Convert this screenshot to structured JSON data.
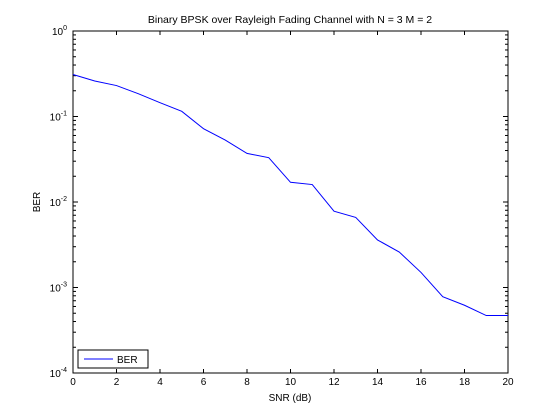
{
  "chart_data": {
    "type": "line",
    "title": "Binary BPSK over Rayleigh Fading Channel with N = 3 M = 2",
    "xlabel": "SNR (dB)",
    "ylabel": "BER",
    "xlim": [
      0,
      20
    ],
    "ylim": [
      0.0001,
      1
    ],
    "yscale": "log",
    "grid": false,
    "legend_position": "bottom-left",
    "x_ticks": [
      0,
      2,
      4,
      6,
      8,
      10,
      12,
      14,
      16,
      18,
      20
    ],
    "x_tick_labels": [
      "0",
      "2",
      "4",
      "6",
      "8",
      "10",
      "12",
      "14",
      "16",
      "18",
      "20"
    ],
    "y_ticks": [
      {
        "value": 0.0001,
        "base": "10",
        "exp": "-4"
      },
      {
        "value": 0.001,
        "base": "10",
        "exp": "-3"
      },
      {
        "value": 0.01,
        "base": "10",
        "exp": "-2"
      },
      {
        "value": 0.1,
        "base": "10",
        "exp": "-1"
      },
      {
        "value": 1,
        "base": "10",
        "exp": "0"
      }
    ],
    "series": [
      {
        "name": "BER",
        "color": "#0000ff",
        "x": [
          0,
          1,
          2,
          3,
          4,
          5,
          6,
          7,
          8,
          9,
          10,
          11,
          12,
          13,
          14,
          15,
          16,
          17,
          18,
          19,
          20
        ],
        "y": [
          0.31,
          0.26,
          0.23,
          0.185,
          0.145,
          0.115,
          0.072,
          0.053,
          0.037,
          0.033,
          0.017,
          0.016,
          0.0078,
          0.0066,
          0.0036,
          0.0026,
          0.0015,
          0.00078,
          0.00062,
          0.00047,
          0.00047
        ]
      }
    ]
  }
}
